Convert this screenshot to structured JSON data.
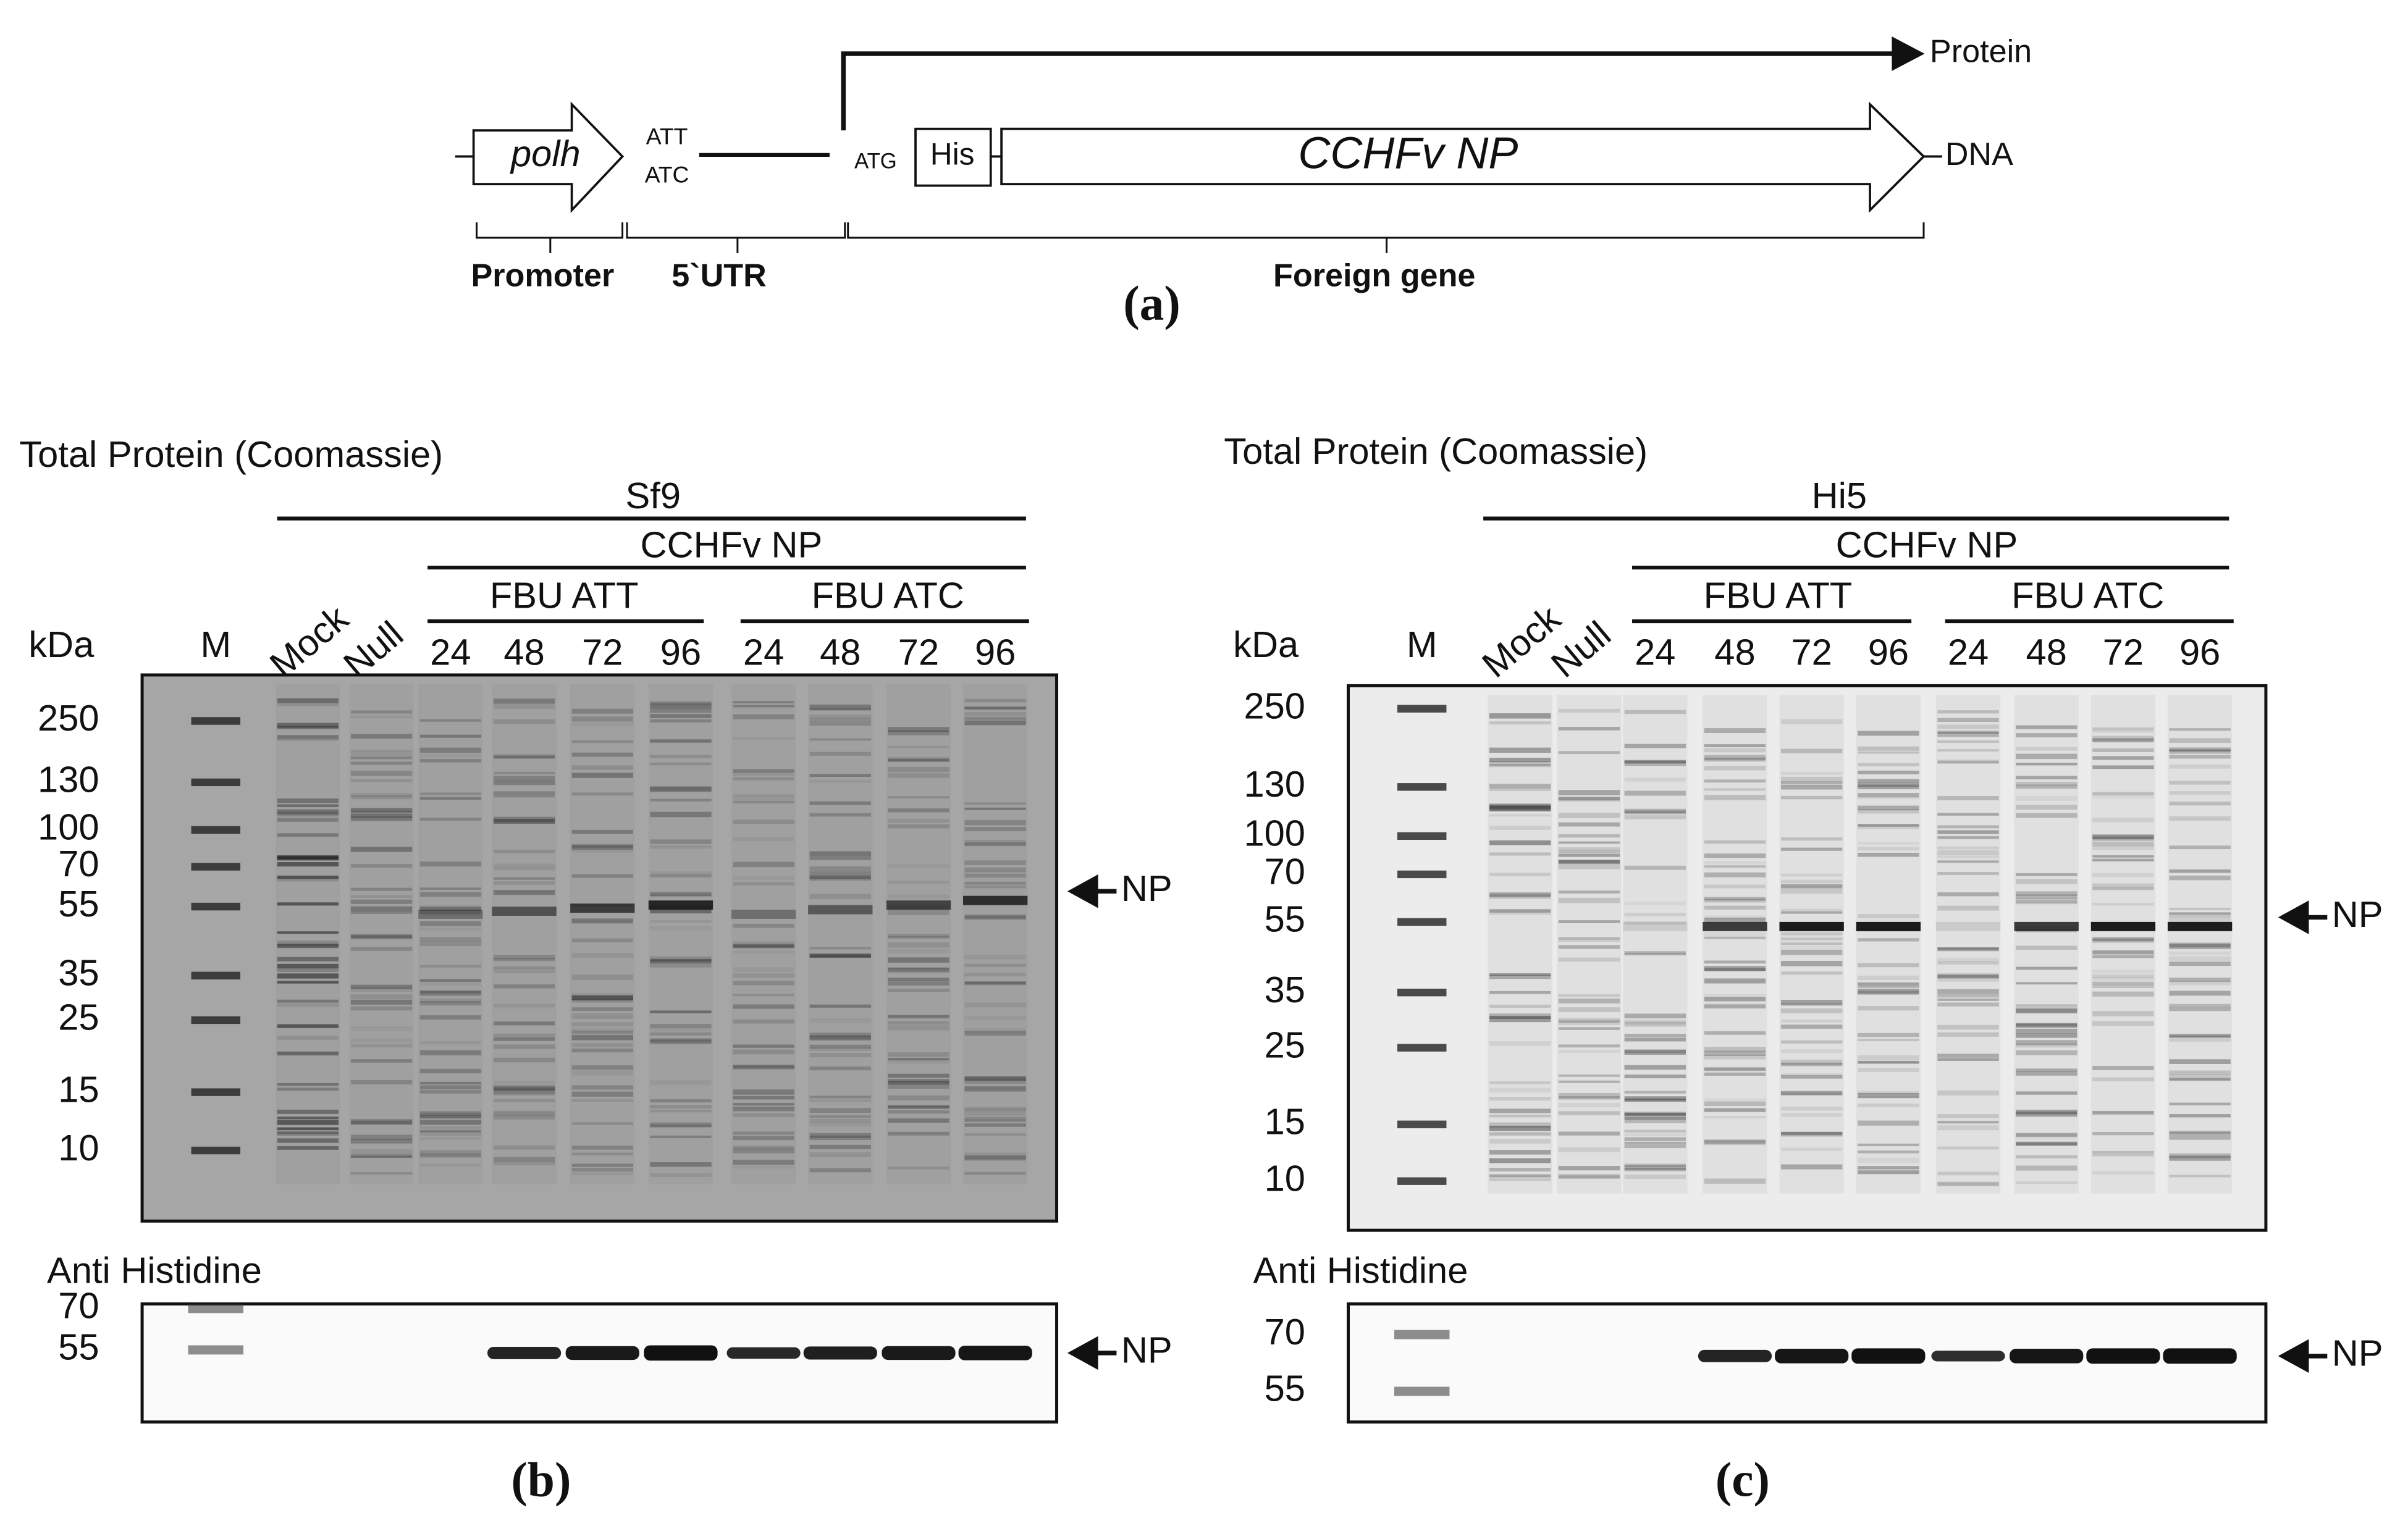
{
  "panel_a": {
    "promoter_gene": "polh",
    "utr_codons": [
      "ATT",
      "ATC"
    ],
    "start_codon": "ATG",
    "tag": "His",
    "gene": "CCHFv NP",
    "protein_label": "Protein",
    "dna_label": "DNA",
    "regions": [
      "Promoter",
      "5`UTR",
      "Foreign gene"
    ],
    "caption": "(a)"
  },
  "panel_b": {
    "title": "Total Protein (Coomassie)",
    "cell_line": "Sf9",
    "construct": "CCHFv NP",
    "groups": [
      {
        "name": "FBU ATT",
        "times": [
          24,
          48,
          72,
          96
        ]
      },
      {
        "name": "FBU ATC",
        "times": [
          24,
          48,
          72,
          96
        ]
      }
    ],
    "unit": "kDa",
    "lanes": [
      "M",
      "Mock",
      "Null"
    ],
    "markers": [
      250,
      130,
      100,
      70,
      55,
      35,
      25,
      15,
      10
    ],
    "band_label": "NP",
    "western_title": "Anti Histidine",
    "western_markers": [
      70,
      55
    ],
    "western_band_label": "NP",
    "caption": "(b)"
  },
  "panel_c": {
    "title": "Total Protein (Coomassie)",
    "cell_line": "Hi5",
    "construct": "CCHFv NP",
    "groups": [
      {
        "name": "FBU ATT",
        "times": [
          24,
          48,
          72,
          96
        ]
      },
      {
        "name": "FBU ATC",
        "times": [
          24,
          48,
          72,
          96
        ]
      }
    ],
    "unit": "kDa",
    "lanes": [
      "M",
      "Mock",
      "Null"
    ],
    "markers": [
      250,
      130,
      100,
      70,
      55,
      35,
      25,
      15,
      10
    ],
    "band_label": "NP",
    "western_title": "Anti Histidine",
    "western_markers": [
      70,
      55
    ],
    "western_band_label": "NP",
    "caption": "(c)"
  }
}
